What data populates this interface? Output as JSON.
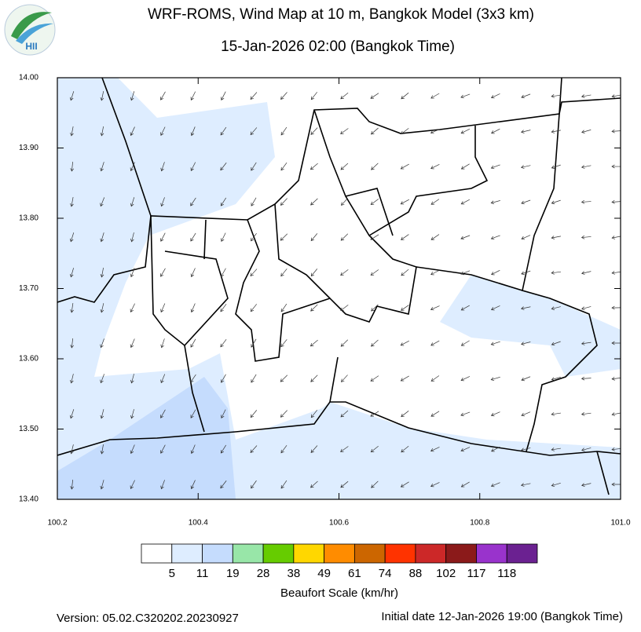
{
  "header": {
    "title": "WRF-ROMS, Wind Map at 10 m, Bangkok Model (3x3 km)",
    "subtitle": "15-Jan-2026 02:00 (Bangkok Time)",
    "logo": "HII"
  },
  "map": {
    "xlim": [
      100.2,
      101.0
    ],
    "ylim": [
      13.4,
      14.0
    ],
    "xticks": [
      100.2,
      100.4,
      100.6,
      100.8,
      {
        "value": 101,
        "label": "101.0"
      }
    ],
    "yticks": [
      {
        "value": 13.4,
        "label": "13.40"
      },
      {
        "value": 13.5,
        "label": "13.50"
      },
      {
        "value": 13.6,
        "label": "13.60"
      },
      {
        "value": 13.7,
        "label": "13.70"
      },
      {
        "value": 13.8,
        "label": "13.80"
      },
      {
        "value": 13.9,
        "label": "13.90"
      },
      {
        "value": 14,
        "label": "14.00"
      }
    ]
  },
  "colorbar": {
    "title": "Beaufort Scale (km/hr)",
    "colors": [
      "#ffffff",
      "#deedff",
      "#c5dcfd",
      "#98e6a8",
      "#66cc00",
      "#ffd700",
      "#ff8c00",
      "#cc6600",
      "#ff3300",
      "#cc2828",
      "#8b1a1a",
      "#9933cc",
      "#6b2191"
    ],
    "labels": [
      5,
      11,
      19,
      28,
      38,
      49,
      61,
      74,
      88,
      102,
      117,
      118
    ]
  },
  "footer": {
    "version": "Version: 05.02.C320202.20230927",
    "initial": "Initial date 12-Jan-2026 19:00 (Bangkok Time)"
  }
}
